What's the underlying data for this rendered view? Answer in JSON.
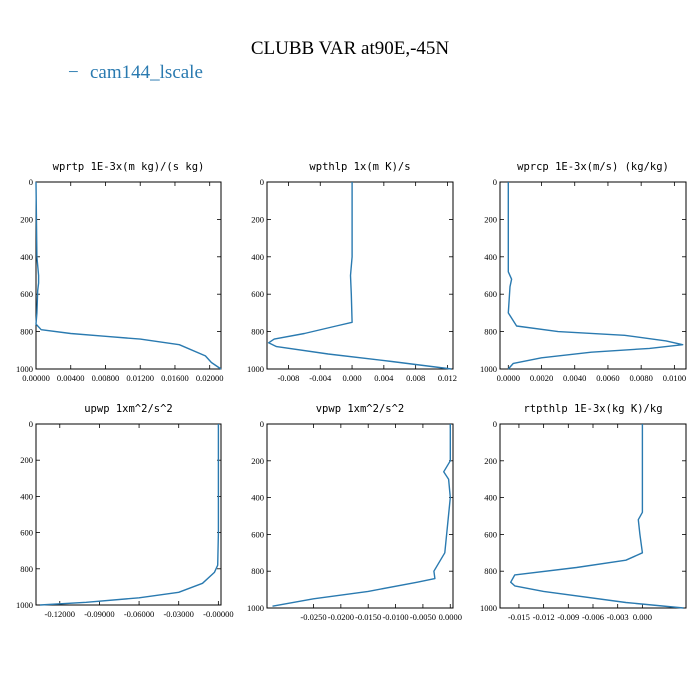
{
  "figure": {
    "title": "CLUBB VAR at90E,-45N",
    "legend_label": "cam144_lscale",
    "legend_marker": "−",
    "series_color": "#2a7ab0"
  },
  "chart_data": [
    {
      "type": "line",
      "title": "wprtp  1E-3x(m kg)/(s kg)",
      "series": [
        {
          "name": "cam144_lscale",
          "x": [
            0.0,
            0.0001,
            0.0003,
            0.0003,
            0.0002,
            0.0001,
            0.0,
            0.0006,
            0.004,
            0.008,
            0.012,
            0.0165,
            0.0195,
            0.0202,
            0.0213
          ],
          "y": [
            0,
            400,
            500,
            540,
            580,
            700,
            760,
            790,
            810,
            825,
            840,
            870,
            930,
            965,
            1000
          ]
        }
      ],
      "xlim": [
        0.0,
        0.0213
      ],
      "ylim": [
        0,
        1000
      ],
      "xticks": [
        0.0,
        0.004,
        0.008,
        0.012,
        0.016,
        0.02
      ],
      "xticklabels": [
        "0.00000",
        "0.00400",
        "0.00800",
        "0.01200",
        "0.01600",
        "0.02000"
      ],
      "yticks": [
        0,
        200,
        400,
        600,
        800,
        1000
      ],
      "yticklabels": [
        "0",
        "200",
        "400",
        "600",
        "800",
        "1000"
      ]
    },
    {
      "type": "line",
      "title": "wpthlp  1x(m K)/s",
      "series": [
        {
          "name": "cam144_lscale",
          "x": [
            0.0,
            0.0,
            -0.0002,
            -0.0001,
            0.0,
            -0.002,
            -0.006,
            -0.0098,
            -0.0105,
            -0.0095,
            -0.003,
            0.005,
            0.0125
          ],
          "y": [
            0,
            400,
            500,
            600,
            750,
            770,
            810,
            840,
            860,
            880,
            920,
            960,
            1000
          ]
        }
      ],
      "xlim": [
        -0.0107,
        0.0127
      ],
      "ylim": [
        0,
        1000
      ],
      "xticks": [
        -0.008,
        -0.004,
        0.0,
        0.004,
        0.008,
        0.012
      ],
      "xticklabels": [
        "-0.008",
        "-0.004",
        "0.000",
        "0.004",
        "0.008",
        "0.012"
      ],
      "yticks": [
        0,
        200,
        400,
        600,
        800,
        1000
      ],
      "yticklabels": [
        "0",
        "200",
        "400",
        "600",
        "800",
        "1000"
      ]
    },
    {
      "type": "line",
      "title": "wprcp  1E-3x(m/s) (kg/kg)",
      "series": [
        {
          "name": "cam144_lscale",
          "x": [
            0.0,
            0.0,
            0.0002,
            0.0001,
            0.0,
            0.0005,
            0.003,
            0.007,
            0.0095,
            0.0105,
            0.0085,
            0.005,
            0.002,
            0.0003,
            0.0
          ],
          "y": [
            0,
            480,
            520,
            560,
            700,
            770,
            800,
            820,
            850,
            870,
            890,
            910,
            940,
            970,
            1000
          ]
        }
      ],
      "xlim": [
        -0.0005,
        0.0107
      ],
      "ylim": [
        0,
        1000
      ],
      "xticks": [
        0.0,
        0.002,
        0.004,
        0.006,
        0.008,
        0.01
      ],
      "xticklabels": [
        "0.0000",
        "0.0020",
        "0.0040",
        "0.0060",
        "0.0080",
        "0.0100"
      ],
      "yticks": [
        0,
        200,
        400,
        600,
        800,
        1000
      ],
      "yticklabels": [
        "0",
        "200",
        "400",
        "600",
        "800",
        "1000"
      ]
    },
    {
      "type": "line",
      "title": "upwp  1xm^2/s^2",
      "series": [
        {
          "name": "cam144_lscale",
          "x": [
            0.0,
            0.0,
            -0.0005,
            -0.003,
            -0.012,
            -0.03,
            -0.06,
            -0.1,
            -0.135
          ],
          "y": [
            0,
            600,
            780,
            820,
            880,
            930,
            960,
            985,
            1000
          ]
        }
      ],
      "xlim": [
        -0.138,
        0.002
      ],
      "ylim": [
        0,
        1000
      ],
      "xticks": [
        -0.12,
        -0.09,
        -0.06,
        -0.03,
        0.0
      ],
      "xticklabels": [
        "-0.12000",
        "-0.09000",
        "-0.06000",
        "-0.03000",
        "-0.00000"
      ],
      "yticks": [
        0,
        200,
        400,
        600,
        800,
        1000
      ],
      "yticklabels": [
        "0",
        "200",
        "400",
        "600",
        "800",
        "1000"
      ]
    },
    {
      "type": "line",
      "title": "vpwp  1xm^2/s^2",
      "series": [
        {
          "name": "cam144_lscale",
          "x": [
            0.0,
            0.0,
            -0.0012,
            -0.0003,
            0.0,
            -0.001,
            -0.003,
            -0.0028,
            -0.006,
            -0.015,
            -0.025,
            -0.0325
          ],
          "y": [
            0,
            200,
            260,
            300,
            400,
            700,
            800,
            840,
            860,
            910,
            950,
            990
          ]
        }
      ],
      "xlim": [
        -0.0335,
        0.0005
      ],
      "ylim": [
        0,
        1000
      ],
      "xticks": [
        -0.025,
        -0.02,
        -0.015,
        -0.01,
        -0.005,
        0.0
      ],
      "xticklabels": [
        "-0.0250",
        "-0.0200",
        "-0.0150",
        "-0.0100",
        "-0.0050",
        "0.0000"
      ],
      "yticks": [
        0,
        200,
        400,
        600,
        800,
        1000
      ],
      "yticklabels": [
        "0",
        "200",
        "400",
        "600",
        "800",
        "1000"
      ]
    },
    {
      "type": "line",
      "title": "rtpthlp  1E-3x(kg K)/kg",
      "series": [
        {
          "name": "cam144_lscale",
          "x": [
            0.0,
            0.0,
            -0.0005,
            -0.0003,
            0.0,
            -0.002,
            -0.008,
            -0.0155,
            -0.016,
            -0.0155,
            -0.012,
            -0.002,
            0.005
          ],
          "y": [
            0,
            480,
            520,
            600,
            700,
            740,
            780,
            820,
            860,
            880,
            910,
            970,
            1000
          ]
        }
      ],
      "xlim": [
        -0.0173,
        0.0053
      ],
      "ylim": [
        0,
        1000
      ],
      "xticks": [
        -0.015,
        -0.012,
        -0.009,
        -0.006,
        -0.003,
        0.0
      ],
      "xticklabels": [
        "-0.015",
        "-0.012",
        "-0.009",
        "-0.006",
        "-0.003",
        "0.000"
      ],
      "yticks": [
        0,
        200,
        400,
        600,
        800,
        1000
      ],
      "yticklabels": [
        "0",
        "200",
        "400",
        "600",
        "800",
        "1000"
      ]
    }
  ]
}
